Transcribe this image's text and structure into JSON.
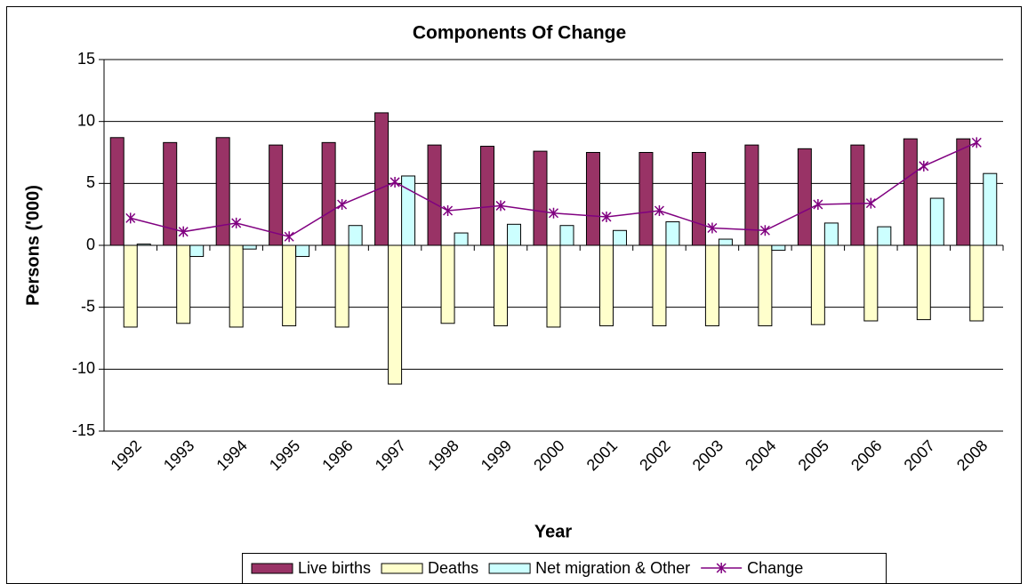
{
  "chart_data": {
    "type": "bar",
    "title": "Components Of Change",
    "x_label": "Year",
    "y_label": "Persons ('000)",
    "categories": [
      "1992",
      "1993",
      "1994",
      "1995",
      "1996",
      "1997",
      "1998",
      "1999",
      "2000",
      "2001",
      "2002",
      "2003",
      "2004",
      "2005",
      "2006",
      "2007",
      "2008"
    ],
    "series": [
      {
        "name": "Live births",
        "type": "bar",
        "color": "#993366",
        "values": [
          8.7,
          8.3,
          8.7,
          8.1,
          8.3,
          10.7,
          8.1,
          8.0,
          7.6,
          7.5,
          7.5,
          7.5,
          8.1,
          7.8,
          8.1,
          8.6,
          8.6
        ]
      },
      {
        "name": "Deaths",
        "type": "bar",
        "color": "#FFFFCC",
        "values": [
          -6.6,
          -6.3,
          -6.6,
          -6.5,
          -6.6,
          -11.2,
          -6.3,
          -6.5,
          -6.6,
          -6.5,
          -6.5,
          -6.5,
          -6.5,
          -6.4,
          -6.1,
          -6.0,
          -6.1
        ]
      },
      {
        "name": "Net migration & Other",
        "type": "bar",
        "color": "#CCFFFF",
        "values": [
          0.1,
          -0.9,
          -0.3,
          -0.9,
          1.6,
          5.6,
          1.0,
          1.7,
          1.6,
          1.2,
          1.9,
          0.5,
          -0.4,
          1.8,
          1.5,
          3.8,
          5.8
        ]
      },
      {
        "name": "Change",
        "type": "line",
        "color": "#800080",
        "values": [
          2.2,
          1.1,
          1.8,
          0.7,
          3.3,
          5.1,
          2.8,
          3.2,
          2.6,
          2.3,
          2.8,
          1.4,
          1.2,
          3.3,
          3.4,
          6.4,
          8.3
        ]
      }
    ],
    "ylim": [
      -15,
      15
    ],
    "yticks": [
      -15,
      -10,
      -5,
      0,
      5,
      10,
      15
    ],
    "grid": true,
    "legend": "bottom"
  }
}
